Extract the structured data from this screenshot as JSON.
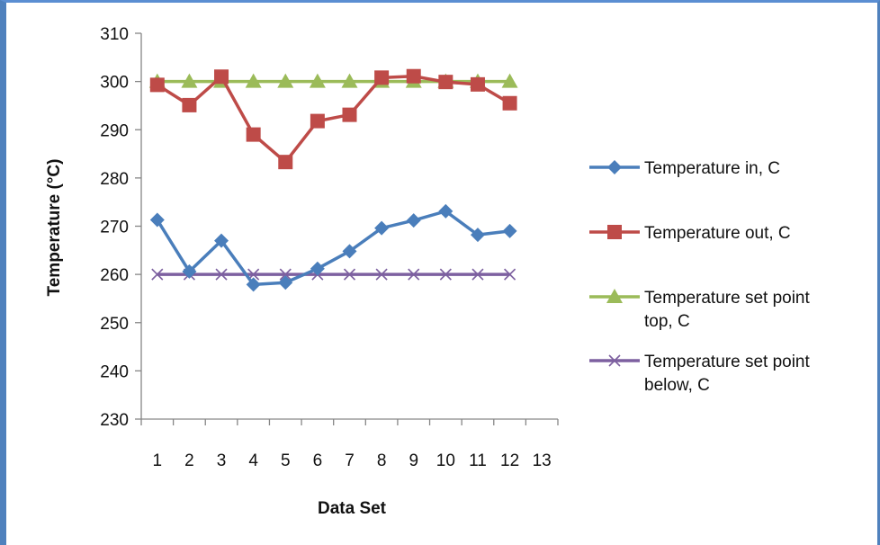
{
  "chart_data": {
    "type": "line",
    "xlabel": "Data Set",
    "ylabel": "Temperature (°C)",
    "ylim": [
      230,
      310
    ],
    "yticks": [
      230,
      240,
      250,
      260,
      270,
      280,
      290,
      300,
      310
    ],
    "xticks": [
      "1",
      "2",
      "3",
      "4",
      "5",
      "6",
      "7",
      "8",
      "9",
      "10",
      "11",
      "12",
      "13"
    ],
    "x": [
      1,
      2,
      3,
      4,
      5,
      6,
      7,
      8,
      9,
      10,
      11,
      12
    ],
    "grid": false,
    "legend_position": "right",
    "series": [
      {
        "name": "Temperature in, C",
        "legend_lines": [
          "Temperature in, C"
        ],
        "color": "#4a7ebb",
        "marker": "diamond",
        "values": [
          271.3,
          260.6,
          267.0,
          257.9,
          258.3,
          261.2,
          264.8,
          269.6,
          271.2,
          273.1,
          268.2,
          269.0
        ]
      },
      {
        "name": "Temperature out, C",
        "legend_lines": [
          "Temperature out, C"
        ],
        "color": "#be4b48",
        "marker": "square",
        "values": [
          299.3,
          295.1,
          301.0,
          289.0,
          283.3,
          291.8,
          293.1,
          300.8,
          301.1,
          299.9,
          299.4,
          295.5
        ]
      },
      {
        "name": "Temperature set point top, C",
        "legend_lines": [
          "Temperature set point",
          "top, C"
        ],
        "color": "#9bbb59",
        "marker": "triangle",
        "values": [
          300,
          300,
          300,
          300,
          300,
          300,
          300,
          300,
          300,
          300,
          300,
          300
        ]
      },
      {
        "name": "Temperature set point below, C",
        "legend_lines": [
          "Temperature set point",
          "below, C"
        ],
        "color": "#7d60a0",
        "marker": "x",
        "values": [
          260,
          260,
          260,
          260,
          260,
          260,
          260,
          260,
          260,
          260,
          260,
          260
        ]
      }
    ]
  }
}
